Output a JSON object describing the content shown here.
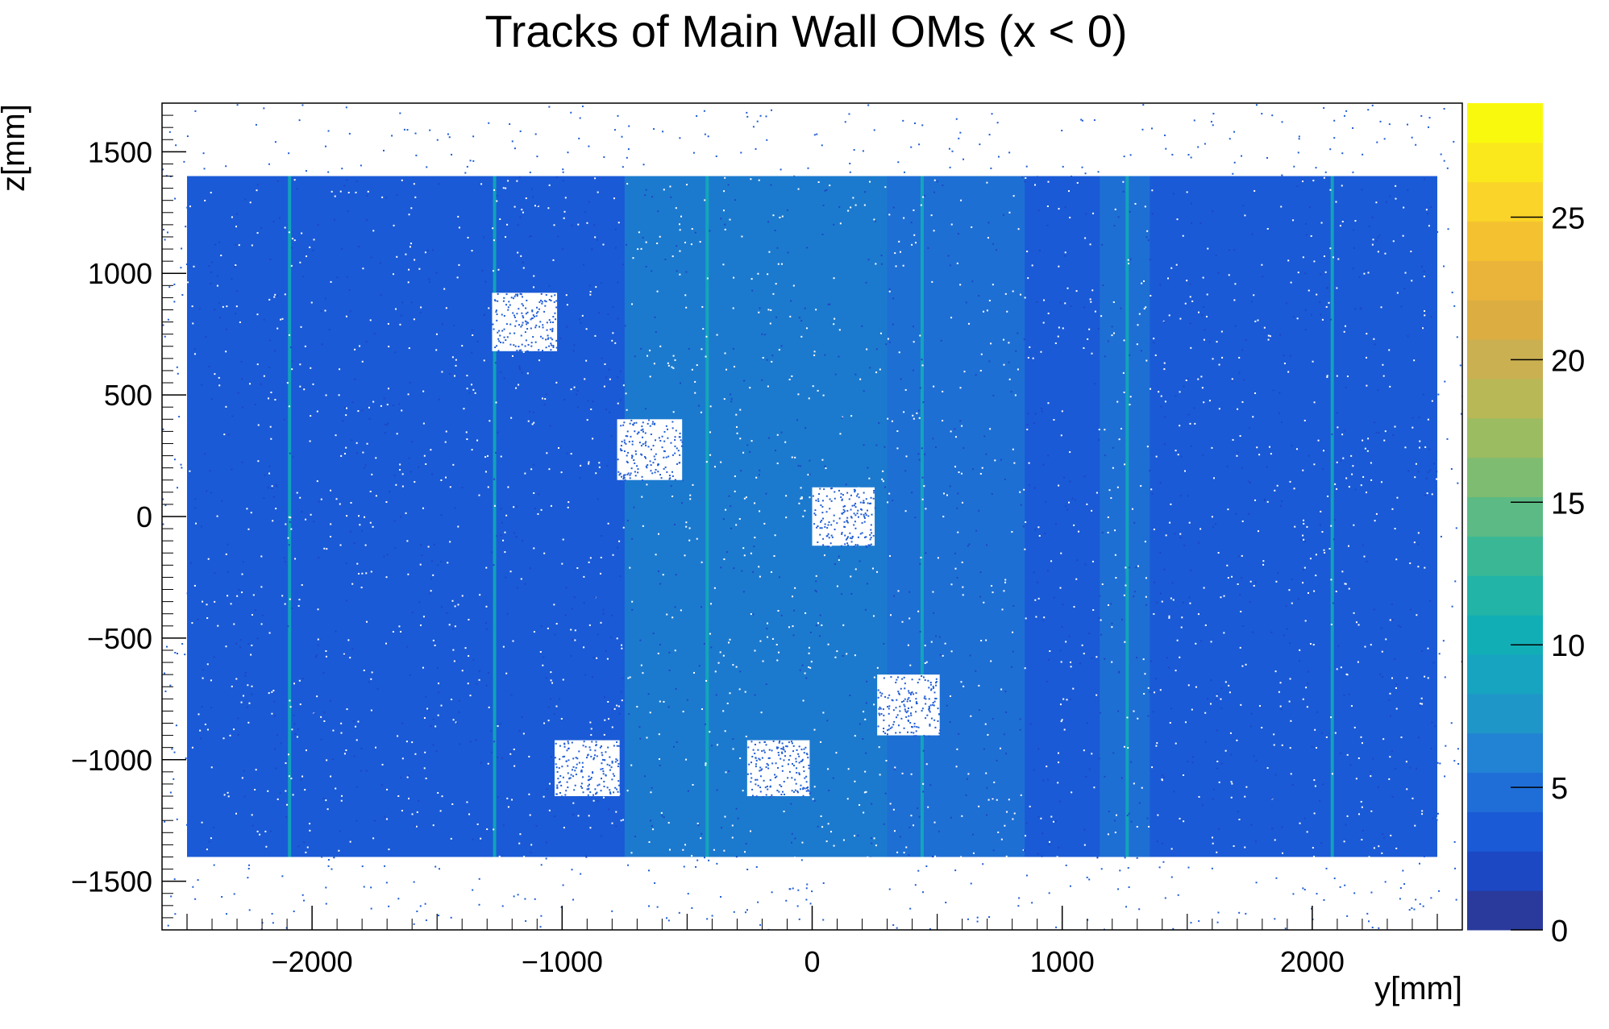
{
  "chart_data": {
    "type": "heatmap",
    "title": "Tracks of Main Wall OMs (x < 0)",
    "xlabel": "y[mm]",
    "ylabel": "z[mm]",
    "xlim": [
      -2600,
      2600
    ],
    "ylim": [
      -1700,
      1700
    ],
    "x_ticks": [
      {
        "value": -2000,
        "label": "−2000"
      },
      {
        "value": -1000,
        "label": "−1000"
      },
      {
        "value": 0,
        "label": "0"
      },
      {
        "value": 1000,
        "label": "1000"
      },
      {
        "value": 2000,
        "label": "2000"
      }
    ],
    "y_ticks": [
      {
        "value": 1500,
        "label": "1500"
      },
      {
        "value": 1000,
        "label": "1000"
      },
      {
        "value": 500,
        "label": "500"
      },
      {
        "value": 0,
        "label": "0"
      },
      {
        "value": -500,
        "label": "−500"
      },
      {
        "value": -1000,
        "label": "−1000"
      },
      {
        "value": -1500,
        "label": "−1500"
      }
    ],
    "colorbar": {
      "range": [
        0,
        29
      ],
      "ticks": [
        {
          "value": 0,
          "label": "0"
        },
        {
          "value": 5,
          "label": "5"
        },
        {
          "value": 10,
          "label": "10"
        },
        {
          "value": 15,
          "label": "15"
        },
        {
          "value": 20,
          "label": "20"
        },
        {
          "value": 25,
          "label": "25"
        }
      ],
      "palette": [
        "#2a3a9c",
        "#1c48c4",
        "#1a5ad6",
        "#1f6ed8",
        "#2282d4",
        "#1f96c8",
        "#17a4c0",
        "#12aeb6",
        "#22b4a6",
        "#3ab896",
        "#5cba84",
        "#7ebc72",
        "#9cbc62",
        "#b8b856",
        "#cab050",
        "#dcae42",
        "#eab43a",
        "#f4c230",
        "#fad428",
        "#fbe81c",
        "#f9f90e"
      ]
    },
    "populated_region": {
      "y_range": [
        -2500,
        2500
      ],
      "z_range": [
        -1400,
        1400
      ],
      "typical_count": 4,
      "background_color": "#1f5cd6"
    },
    "enhanced_bands": [
      {
        "y_range": [
          -750,
          300
        ],
        "level": 7
      },
      {
        "y_range": [
          300,
          850
        ],
        "level": 6
      },
      {
        "y_range": [
          1150,
          1350
        ],
        "level": 6
      }
    ],
    "bright_lines_y": [
      -2090,
      -1270,
      -420,
      440,
      1260,
      2080
    ],
    "empty_squares": [
      {
        "y_range": [
          -1280,
          -1020
        ],
        "z_range": [
          680,
          920
        ]
      },
      {
        "y_range": [
          -780,
          -520
        ],
        "z_range": [
          150,
          400
        ]
      },
      {
        "y_range": [
          0,
          250
        ],
        "z_range": [
          -120,
          120
        ]
      },
      {
        "y_range": [
          260,
          510
        ],
        "z_range": [
          -900,
          -650
        ]
      },
      {
        "y_range": [
          -1030,
          -770
        ],
        "z_range": [
          -1150,
          -920
        ]
      },
      {
        "y_range": [
          -260,
          -10
        ],
        "z_range": [
          -1150,
          -920
        ]
      }
    ]
  }
}
